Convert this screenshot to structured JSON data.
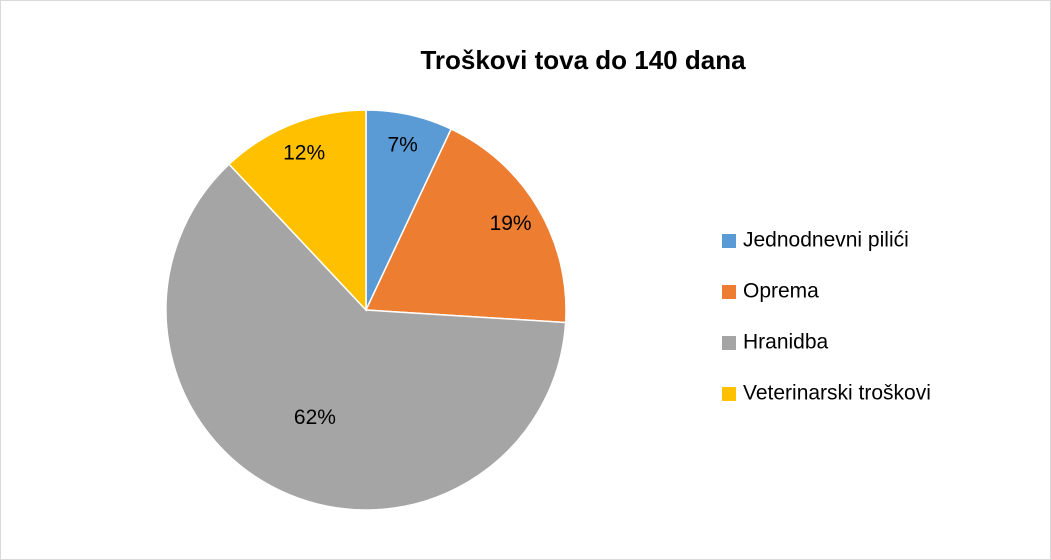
{
  "chart_data": {
    "type": "pie",
    "title": "Troškovi tova do 140 dana",
    "categories": [
      "Jednodnevni pilići",
      "Oprema",
      "Hranidba",
      "Veterinarski troškovi"
    ],
    "values": [
      7,
      19,
      62,
      12
    ],
    "value_labels": [
      "7%",
      "19%",
      "62%",
      "12%"
    ],
    "colors": [
      "#5b9bd5",
      "#ed7d31",
      "#a5a5a5",
      "#ffc000"
    ],
    "legend": "right"
  }
}
